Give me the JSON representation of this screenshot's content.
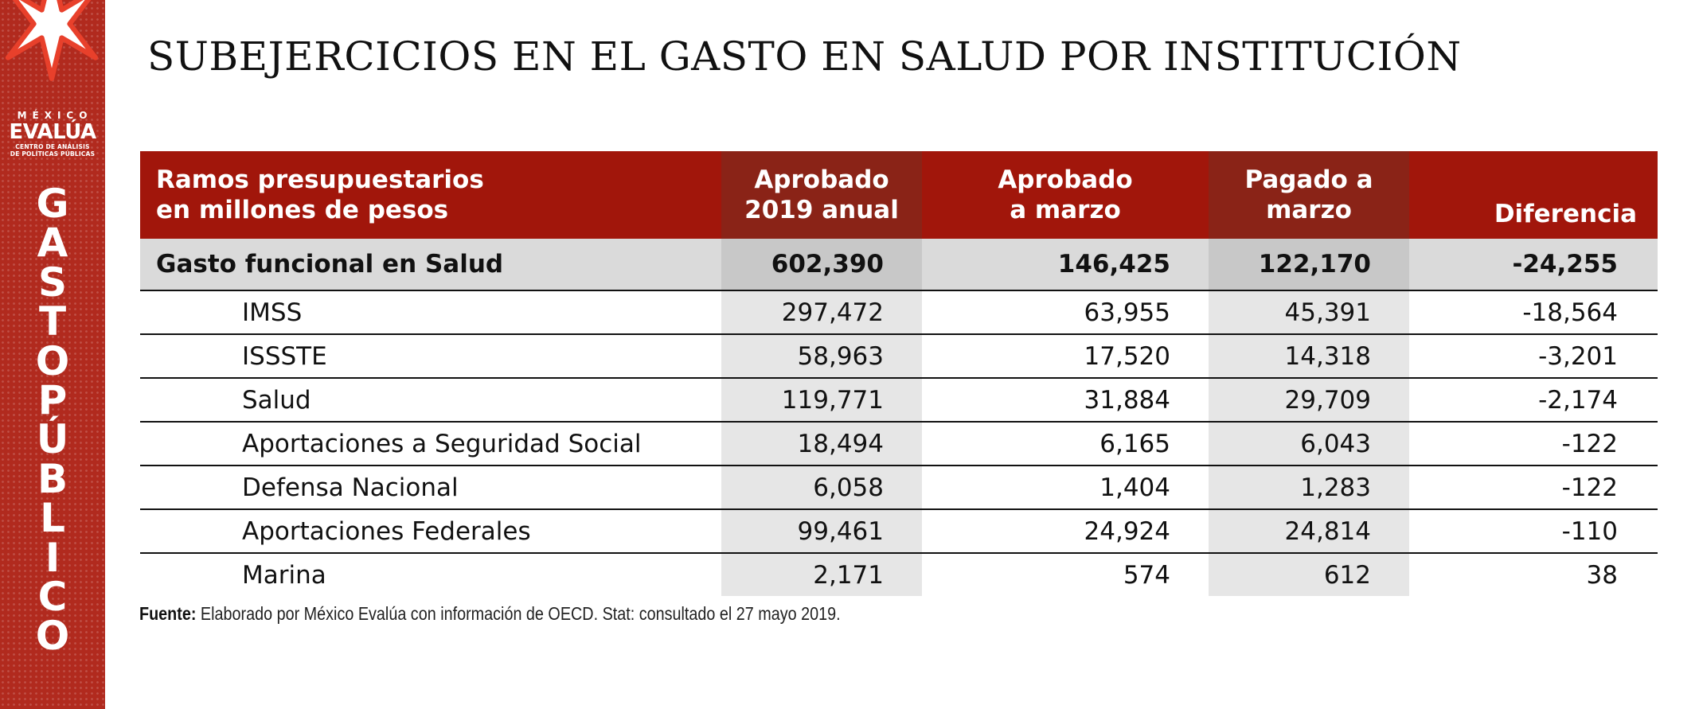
{
  "sidebar": {
    "logo_top": "MÉXICO",
    "logo_name": "EVALÚA",
    "logo_sub_1": "CENTRO DE ANÁLISIS",
    "logo_sub_2": "DE POLÍTICAS PÚBLICAS",
    "vertical_letters": [
      "G",
      "A",
      "S",
      "T",
      "O",
      "P",
      "Ú",
      "B",
      "L",
      "I",
      "C",
      "O"
    ],
    "icon": "star-logo-icon",
    "colors": {
      "background": "#b12a1e",
      "star_fill": "#ffffff",
      "star_outline": "#e8402b"
    }
  },
  "title": "SUBEJERCICIOS EN EL GASTO EN SALUD POR INSTITUCIÓN",
  "table": {
    "headers": {
      "label": [
        "Ramos presupuestarios",
        "en millones de pesos"
      ],
      "approved_annual": [
        "Aprobado",
        "2019 anual"
      ],
      "approved_march": [
        "Aprobado",
        "a marzo"
      ],
      "paid_march": [
        "Pagado a",
        "marzo"
      ],
      "difference": "Diferencia"
    },
    "total": {
      "label": "Gasto funcional en Salud",
      "approved_annual": "602,390",
      "approved_march": "146,425",
      "paid_march": "122,170",
      "difference": "-24,255"
    },
    "rows": [
      {
        "label": "IMSS",
        "approved_annual": "297,472",
        "approved_march": "63,955",
        "paid_march": "45,391",
        "difference": "-18,564"
      },
      {
        "label": "ISSSTE",
        "approved_annual": "58,963",
        "approved_march": "17,520",
        "paid_march": "14,318",
        "difference": "-3,201"
      },
      {
        "label": "Salud",
        "approved_annual": "119,771",
        "approved_march": "31,884",
        "paid_march": "29,709",
        "difference": "-2,174"
      },
      {
        "label": "Aportaciones a Seguridad Social",
        "approved_annual": "18,494",
        "approved_march": "6,165",
        "paid_march": "6,043",
        "difference": "-122"
      },
      {
        "label": "Defensa Nacional",
        "approved_annual": "6,058",
        "approved_march": "1,404",
        "paid_march": "1,283",
        "difference": "-122"
      },
      {
        "label": "Aportaciones Federales",
        "approved_annual": "99,461",
        "approved_march": "24,924",
        "paid_march": "24,814",
        "difference": "-110"
      },
      {
        "label": "Marina",
        "approved_annual": "2,171",
        "approved_march": "574",
        "paid_march": "612",
        "difference": "38"
      }
    ],
    "colors": {
      "header": "#a1160b",
      "header_shaded": "#8a2317",
      "total_row": "#dadada",
      "shaded_column": "#e6e6e6"
    }
  },
  "source": {
    "label": "Fuente:",
    "text": " Elaborado por México Evalúa con información de OECD. Stat: consultado el 27 mayo 2019."
  }
}
